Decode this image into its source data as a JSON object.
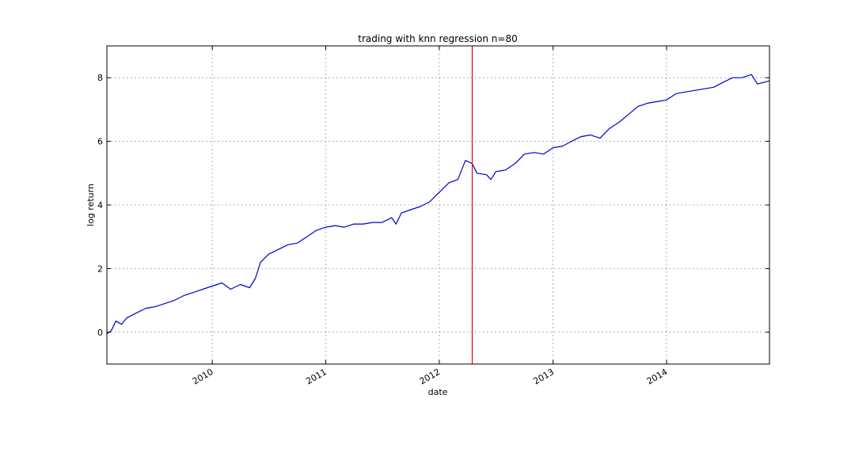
{
  "chart_data": {
    "type": "line",
    "title": "trading with knn regression n=80",
    "xlabel": "date",
    "ylabel": "log return",
    "xlim": [
      "2009-01-27",
      "2014-11-28"
    ],
    "ylim": [
      -1,
      9
    ],
    "grid": true,
    "y_ticks": [
      0,
      2,
      4,
      6,
      8
    ],
    "x_ticks": [
      {
        "date": "2010-01-01",
        "label": "2010"
      },
      {
        "date": "2011-01-01",
        "label": "2011"
      },
      {
        "date": "2012-01-01",
        "label": "2012"
      },
      {
        "date": "2013-01-01",
        "label": "2013"
      },
      {
        "date": "2014-01-01",
        "label": "2014"
      }
    ],
    "split_date": "2012-04-16",
    "split_color": "#ff0000",
    "series": [
      {
        "color": "#0000cc",
        "points": [
          [
            "2009-01-27",
            -0.05
          ],
          [
            "2009-02-10",
            0.05
          ],
          [
            "2009-02-25",
            0.35
          ],
          [
            "2009-03-15",
            0.25
          ],
          [
            "2009-04-01",
            0.45
          ],
          [
            "2009-05-01",
            0.6
          ],
          [
            "2009-06-01",
            0.75
          ],
          [
            "2009-07-01",
            0.8
          ],
          [
            "2009-08-01",
            0.9
          ],
          [
            "2009-09-01",
            1.0
          ],
          [
            "2009-10-01",
            1.15
          ],
          [
            "2009-11-01",
            1.25
          ],
          [
            "2009-12-01",
            1.35
          ],
          [
            "2010-01-01",
            1.45
          ],
          [
            "2010-02-01",
            1.55
          ],
          [
            "2010-03-01",
            1.35
          ],
          [
            "2010-04-01",
            1.5
          ],
          [
            "2010-05-01",
            1.4
          ],
          [
            "2010-05-20",
            1.7
          ],
          [
            "2010-06-05",
            2.2
          ],
          [
            "2010-07-01",
            2.45
          ],
          [
            "2010-08-01",
            2.6
          ],
          [
            "2010-09-01",
            2.75
          ],
          [
            "2010-10-01",
            2.8
          ],
          [
            "2010-11-01",
            3.0
          ],
          [
            "2010-12-01",
            3.2
          ],
          [
            "2011-01-01",
            3.3
          ],
          [
            "2011-02-01",
            3.35
          ],
          [
            "2011-03-01",
            3.3
          ],
          [
            "2011-04-01",
            3.4
          ],
          [
            "2011-05-01",
            3.4
          ],
          [
            "2011-06-01",
            3.45
          ],
          [
            "2011-07-01",
            3.45
          ],
          [
            "2011-08-01",
            3.6
          ],
          [
            "2011-08-15",
            3.4
          ],
          [
            "2011-09-01",
            3.75
          ],
          [
            "2011-10-01",
            3.85
          ],
          [
            "2011-11-01",
            3.95
          ],
          [
            "2011-12-01",
            4.1
          ],
          [
            "2012-01-01",
            4.4
          ],
          [
            "2012-02-01",
            4.7
          ],
          [
            "2012-03-01",
            4.8
          ],
          [
            "2012-03-25",
            5.4
          ],
          [
            "2012-04-16",
            5.3
          ],
          [
            "2012-05-01",
            5.0
          ],
          [
            "2012-06-01",
            4.95
          ],
          [
            "2012-06-15",
            4.8
          ],
          [
            "2012-07-01",
            5.05
          ],
          [
            "2012-08-01",
            5.1
          ],
          [
            "2012-09-01",
            5.3
          ],
          [
            "2012-10-01",
            5.6
          ],
          [
            "2012-11-01",
            5.65
          ],
          [
            "2012-12-01",
            5.6
          ],
          [
            "2013-01-01",
            5.8
          ],
          [
            "2013-02-01",
            5.85
          ],
          [
            "2013-03-01",
            6.0
          ],
          [
            "2013-04-01",
            6.15
          ],
          [
            "2013-05-01",
            6.2
          ],
          [
            "2013-06-01",
            6.1
          ],
          [
            "2013-07-01",
            6.4
          ],
          [
            "2013-08-01",
            6.6
          ],
          [
            "2013-09-01",
            6.85
          ],
          [
            "2013-10-01",
            7.1
          ],
          [
            "2013-11-01",
            7.2
          ],
          [
            "2013-12-01",
            7.25
          ],
          [
            "2014-01-01",
            7.3
          ],
          [
            "2014-02-01",
            7.5
          ],
          [
            "2014-03-01",
            7.55
          ],
          [
            "2014-04-01",
            7.6
          ],
          [
            "2014-05-01",
            7.65
          ],
          [
            "2014-06-01",
            7.7
          ],
          [
            "2014-07-01",
            7.85
          ],
          [
            "2014-08-01",
            8.0
          ],
          [
            "2014-09-01",
            8.0
          ],
          [
            "2014-10-01",
            8.1
          ],
          [
            "2014-10-20",
            7.8
          ],
          [
            "2014-11-28",
            7.9
          ]
        ]
      }
    ]
  }
}
